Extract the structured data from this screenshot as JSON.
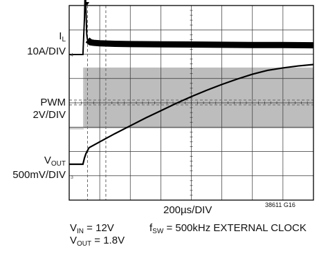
{
  "chart_data": {
    "type": "line",
    "title": "",
    "figure_id": "38611 G16",
    "grid": true,
    "divisions": {
      "x": 8,
      "y": 8
    },
    "time_scale": "200µs/DIV",
    "xlim_us": [
      0,
      1600
    ],
    "traces": [
      {
        "name_main": "I",
        "name_sub": "L",
        "scale": "10A/DIV",
        "ground_marker": "4",
        "unit": "A",
        "x_us": [
          0,
          90,
          100,
          105,
          110,
          115,
          120,
          140,
          160,
          200,
          300,
          400,
          600,
          800,
          1000,
          1200,
          1400,
          1600
        ],
        "y": [
          0,
          0,
          15,
          28,
          18,
          8,
          6,
          5,
          4.8,
          4.6,
          4.4,
          4.3,
          4.2,
          4.1,
          4.0,
          3.9,
          3.9,
          3.8
        ]
      },
      {
        "name": "PWM",
        "scale": "2V/DIV",
        "unit": "V",
        "x_us": [
          0,
          90,
          95,
          1600
        ],
        "y": [
          0,
          0,
          5,
          5
        ]
      },
      {
        "name_main": "V",
        "name_sub": "OUT",
        "scale": "500mV/DIV",
        "ground_marker": "3",
        "unit": "V",
        "x_us": [
          0,
          90,
          100,
          110,
          130,
          200,
          300,
          400,
          500,
          600,
          700,
          800,
          900,
          1000,
          1100,
          1200,
          1300,
          1400,
          1500,
          1600
        ],
        "y": [
          0,
          0,
          0.13,
          0.22,
          0.34,
          0.46,
          0.63,
          0.79,
          0.95,
          1.1,
          1.25,
          1.39,
          1.52,
          1.64,
          1.75,
          1.85,
          1.93,
          1.98,
          2.02,
          2.05
        ]
      }
    ],
    "cursors_us": [
      120,
      240
    ],
    "conditions": {
      "vin_main": "V",
      "vin_sub": "IN",
      "vin_value": " = 12V",
      "vout_main": "V",
      "vout_sub": "OUT",
      "vout_value": " = 1.8V",
      "fsw_main": "f",
      "fsw_sub": "SW",
      "fsw_value": " = 500kHz EXTERNAL CLOCK"
    }
  }
}
